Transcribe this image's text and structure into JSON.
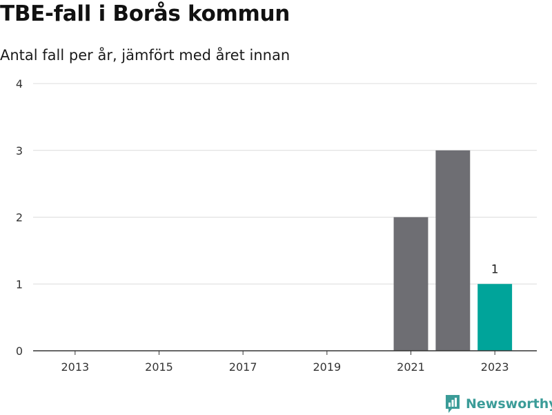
{
  "header": {
    "title": "TBE-fall i Borås kommun",
    "subtitle": "Antal fall per år, jämfört med året innan"
  },
  "brand": {
    "name": "Newsworthy",
    "icon": "newsworthy-logo-icon",
    "color": "#3b9c98"
  },
  "chart_data": {
    "type": "bar",
    "title": "TBE-fall i Borås kommun",
    "subtitle": "Antal fall per år, jämfört med året innan",
    "xlabel": "",
    "ylabel": "",
    "categories": [
      "2021",
      "2022",
      "2023"
    ],
    "values": [
      2,
      3,
      1
    ],
    "bar_colors": [
      "#6e6e73",
      "#6e6e73",
      "#00a49a"
    ],
    "data_labels": [
      {
        "category": "2023",
        "text": "1"
      }
    ],
    "xlim": [
      2012,
      2024
    ],
    "ylim": [
      0,
      4
    ],
    "x_ticks": [
      2013,
      2015,
      2017,
      2019,
      2021,
      2023
    ],
    "y_ticks": [
      0,
      1,
      2,
      3,
      4
    ],
    "grid": true
  }
}
